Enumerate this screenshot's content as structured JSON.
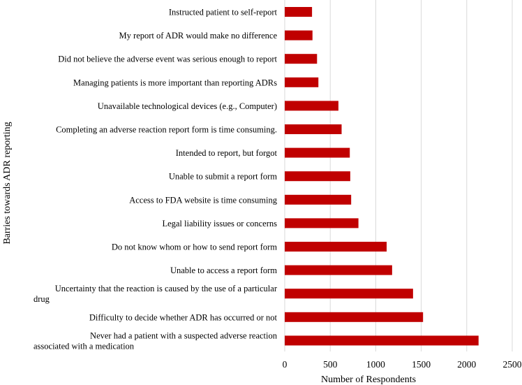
{
  "chart_data": {
    "type": "bar",
    "orientation": "horizontal",
    "title": "",
    "xlabel": "Number of Respondents",
    "ylabel": "Barries towards ADR reporting",
    "xlim": [
      0,
      2500
    ],
    "xticks": [
      "0",
      "500",
      "1000",
      "1500",
      "2000",
      "2500"
    ],
    "grid": "vertical",
    "legend": "none",
    "bar_color": "#c00000",
    "categories": [
      [
        "Instructed patient to self-report"
      ],
      [
        "My report of ADR would make no difference"
      ],
      [
        "Did not believe the adverse event was serious enough to report"
      ],
      [
        "Managing patients is more important than reporting ADRs"
      ],
      [
        "Unavailable technological devices (e.g., Computer)"
      ],
      [
        "Completing an adverse reaction report form is time consuming."
      ],
      [
        "Intended to report, but forgot"
      ],
      [
        "Unable to submit a report form"
      ],
      [
        "Access to FDA website is time consuming"
      ],
      [
        "Legal liability issues or concerns"
      ],
      [
        "Do not know whom or how to send report form"
      ],
      [
        "Unable to access a report form"
      ],
      [
        "Uncertainty that the reaction is caused by the use of a particular",
        "drug"
      ],
      [
        "Difficulty to decide whether ADR has occurred or not"
      ],
      [
        "Never had a patient with a suspected adverse reaction",
        "associated with a medication"
      ]
    ],
    "values": [
      300,
      305,
      355,
      370,
      590,
      625,
      715,
      720,
      730,
      810,
      1120,
      1180,
      1410,
      1520,
      2130
    ]
  }
}
